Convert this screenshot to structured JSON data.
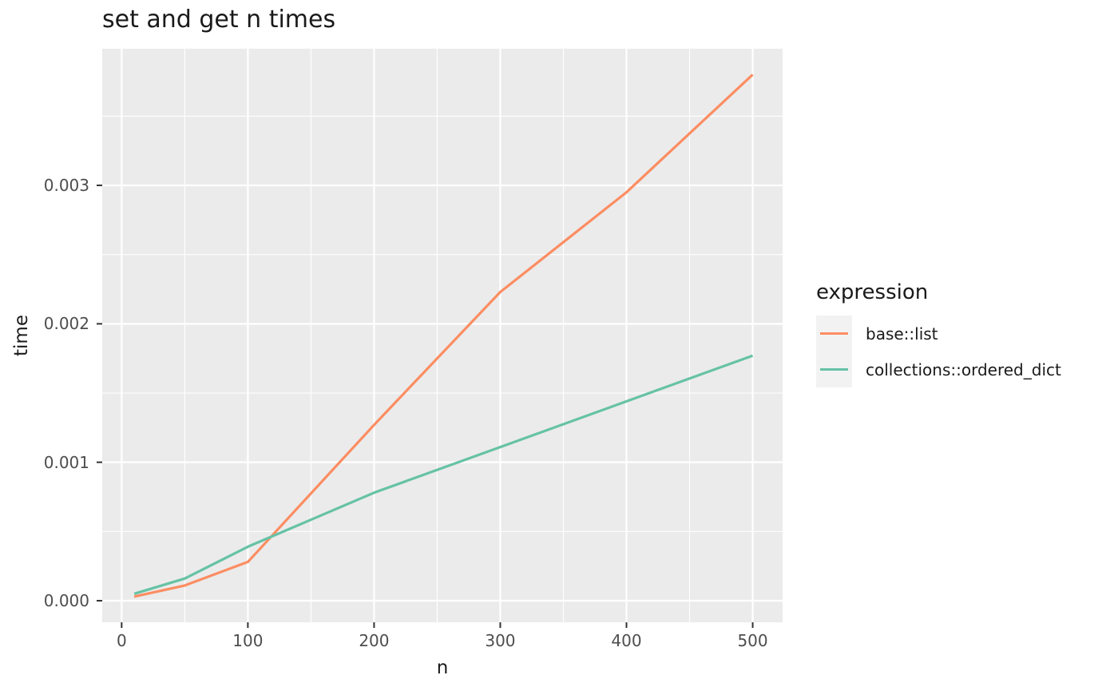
{
  "title": "set and get n times",
  "colors": {
    "panel_bg": "#EBEBEB",
    "grid": "#FFFFFF",
    "tick_mark": "#333333",
    "tick_label": "#4D4D4D",
    "text": "#1A1A1A",
    "legend_key_bg": "#F2F2F2",
    "series_base_list": "#FC8D62",
    "series_ordered_dict": "#66C2A5"
  },
  "chart_data": {
    "type": "line",
    "title": "set and get n times",
    "xlabel": "n",
    "ylabel": "time",
    "legend_title": "expression",
    "legend_position": "right",
    "grid": true,
    "x": [
      10,
      50,
      100,
      200,
      300,
      400,
      500
    ],
    "series": [
      {
        "name": "base::list",
        "color": "#FC8D62",
        "values": [
          3e-05,
          0.00011,
          0.00028,
          0.00127,
          0.00223,
          0.00295,
          0.0038
        ]
      },
      {
        "name": "collections::ordered_dict",
        "color": "#66C2A5",
        "values": [
          5e-05,
          0.00016,
          0.00039,
          0.00078,
          0.00111,
          0.00144,
          0.00177
        ]
      }
    ],
    "x_ticks": [
      0,
      100,
      200,
      300,
      400,
      500
    ],
    "x_tick_labels": [
      "0",
      "100",
      "200",
      "300",
      "400",
      "500"
    ],
    "x_minor": [
      50,
      150,
      250,
      350,
      450
    ],
    "y_ticks": [
      0,
      0.001,
      0.002,
      0.003
    ],
    "y_tick_labels": [
      "0.000",
      "0.001",
      "0.002",
      "0.003"
    ],
    "y_minor": [
      0.0005,
      0.0015,
      0.0025,
      0.0035
    ],
    "xlim": [
      -15.4,
      523.7
    ],
    "ylim": [
      -0.000156,
      0.003987
    ]
  }
}
